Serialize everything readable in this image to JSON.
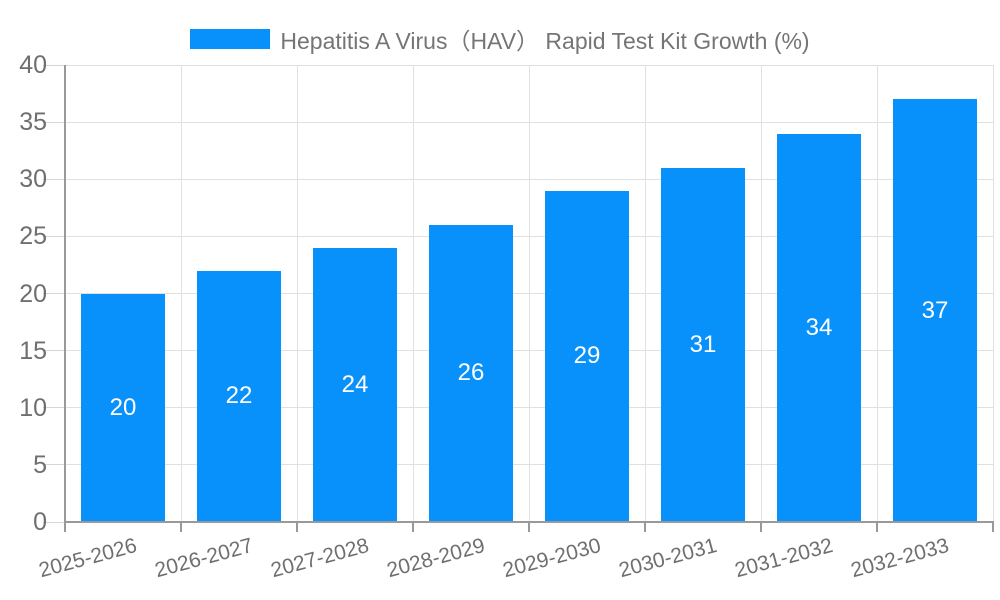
{
  "legend": {
    "label": "Hepatitis A Virus（HAV） Rapid Test Kit Growth (%)"
  },
  "chart_data": {
    "type": "bar",
    "title": "Hepatitis A Virus（HAV） Rapid Test Kit Growth (%)",
    "categories": [
      "2025-2026",
      "2026-2027",
      "2027-2028",
      "2028-2029",
      "2029-2030",
      "2030-2031",
      "2031-2032",
      "2032-2033"
    ],
    "values": [
      20,
      22,
      24,
      26,
      29,
      31,
      34,
      37
    ],
    "xlabel": "",
    "ylabel": "",
    "ylim": [
      0,
      40
    ],
    "yticks": [
      0,
      5,
      10,
      15,
      20,
      25,
      30,
      35,
      40
    ],
    "grid": true,
    "legend_position": "top",
    "x_tick_rotation_deg": -15,
    "bar_color": "#0991fb",
    "value_label_color": "#ffffff",
    "axis_label_color": "#6f6f6f",
    "grid_color": "#e0e0e0",
    "axis_line_color": "#999999",
    "minor_tick_color": "#d6d6d6"
  }
}
